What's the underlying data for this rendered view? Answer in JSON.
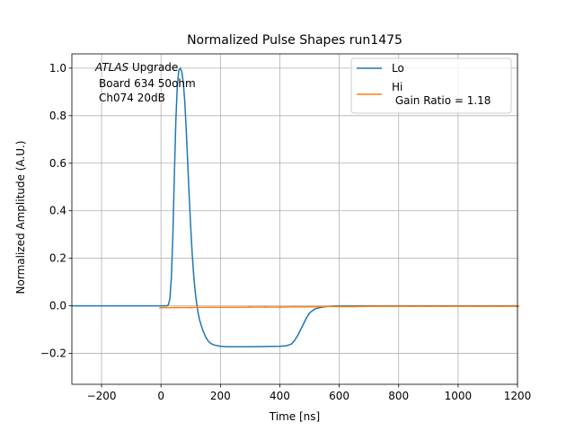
{
  "chart_data": {
    "type": "line",
    "title": "Normalized Pulse Shapes run1475",
    "xlabel": "Time [ns]",
    "ylabel": "Normalized Amplitude (A.U.)",
    "xlim": [
      -300,
      1200
    ],
    "ylim": [
      -0.33,
      1.06
    ],
    "xticks": [
      -200,
      0,
      200,
      400,
      600,
      800,
      1000,
      1200
    ],
    "xtick_labels": [
      "−200",
      "0",
      "200",
      "400",
      "600",
      "800",
      "1000",
      "1200"
    ],
    "yticks": [
      -0.2,
      0.0,
      0.2,
      0.4,
      0.6,
      0.8,
      1.0
    ],
    "ytick_labels": [
      "−0.2",
      "0.0",
      "0.2",
      "0.4",
      "0.6",
      "0.8",
      "1.0"
    ],
    "grid": true,
    "legend_placement": "upper right",
    "annotation": {
      "line1_italic": "ATLAS",
      "line1_rest": " Upgrade",
      "line2": "Board 634 50ohm",
      "line3": "Ch074 20dB"
    },
    "series": [
      {
        "name": "Lo",
        "color": "#1f77b4",
        "x": [
          -300,
          -100,
          0,
          20,
          25,
          30,
          35,
          40,
          45,
          50,
          55,
          60,
          65,
          70,
          75,
          80,
          85,
          90,
          95,
          100,
          105,
          110,
          115,
          120,
          125,
          130,
          140,
          150,
          160,
          170,
          180,
          200,
          220,
          250,
          300,
          350,
          400,
          420,
          430,
          440,
          450,
          460,
          470,
          480,
          490,
          500,
          510,
          520,
          540,
          560,
          580,
          600,
          700,
          800,
          900,
          1000,
          1100,
          1200
        ],
        "y": [
          0.0,
          0.0,
          0.0,
          0.0,
          0.005,
          0.03,
          0.12,
          0.3,
          0.55,
          0.78,
          0.93,
          0.99,
          1.0,
          0.985,
          0.94,
          0.86,
          0.74,
          0.6,
          0.46,
          0.33,
          0.22,
          0.13,
          0.06,
          0.01,
          -0.03,
          -0.06,
          -0.1,
          -0.13,
          -0.15,
          -0.16,
          -0.165,
          -0.17,
          -0.172,
          -0.172,
          -0.172,
          -0.171,
          -0.17,
          -0.168,
          -0.165,
          -0.16,
          -0.145,
          -0.125,
          -0.1,
          -0.075,
          -0.05,
          -0.03,
          -0.02,
          -0.012,
          -0.006,
          -0.003,
          -0.001,
          0.0,
          0.0,
          0.0,
          0.0,
          0.0,
          0.0,
          0.0
        ]
      },
      {
        "name": "Hi\n Gain Ratio = 1.18",
        "color": "#ff7f0e",
        "x": [
          0,
          50,
          100,
          150,
          200,
          250,
          300,
          350,
          400,
          450,
          500,
          550,
          600,
          650,
          700,
          750,
          800,
          850,
          900,
          950,
          1000,
          1050,
          1100,
          1150,
          1200
        ],
        "y": [
          -0.008,
          -0.007,
          -0.007,
          -0.006,
          -0.006,
          -0.006,
          -0.005,
          -0.005,
          -0.005,
          -0.004,
          -0.004,
          -0.003,
          -0.003,
          -0.003,
          -0.002,
          -0.002,
          -0.002,
          -0.002,
          -0.002,
          -0.002,
          -0.002,
          -0.002,
          -0.002,
          -0.002,
          -0.002
        ]
      }
    ]
  }
}
